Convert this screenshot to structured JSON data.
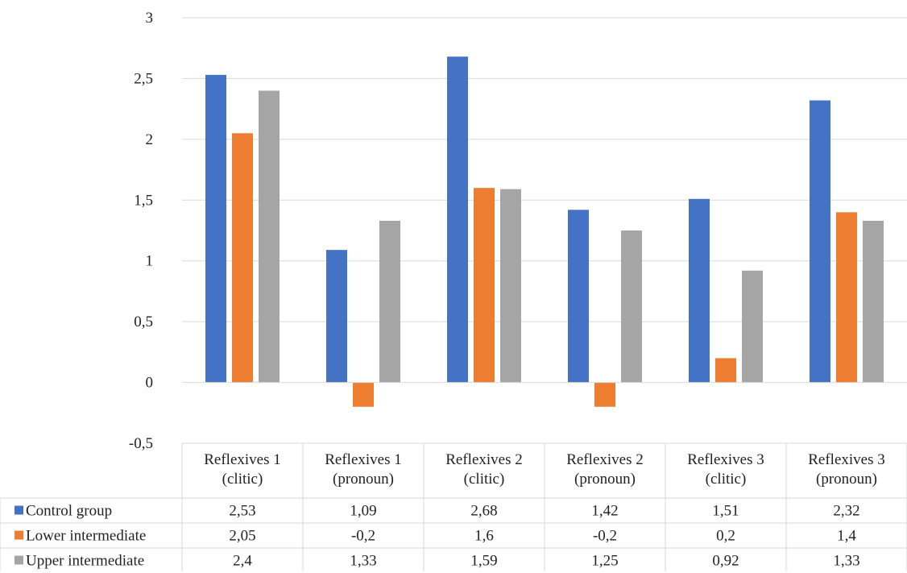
{
  "chart_data": {
    "type": "bar",
    "categories": [
      [
        "Reflexives 1",
        "(clitic)"
      ],
      [
        "Reflexives 1",
        "(pronoun)"
      ],
      [
        "Reflexives 2",
        "(clitic)"
      ],
      [
        "Reflexives 2",
        "(pronoun)"
      ],
      [
        "Reflexives 3",
        "(clitic)"
      ],
      [
        "Reflexives 3",
        "(pronoun)"
      ]
    ],
    "series": [
      {
        "name": "Control group",
        "color": "#4472c4",
        "values": [
          2.53,
          1.09,
          2.68,
          1.42,
          1.51,
          2.32
        ],
        "labels": [
          "2,53",
          "1,09",
          "2,68",
          "1,42",
          "1,51",
          "2,32"
        ]
      },
      {
        "name": "Lower intermediate",
        "color": "#ed7d31",
        "values": [
          2.05,
          -0.2,
          1.6,
          -0.2,
          0.2,
          1.4
        ],
        "labels": [
          "2,05",
          "-0,2",
          "1,6",
          "-0,2",
          "0,2",
          "1,4"
        ]
      },
      {
        "name": "Upper intermediate",
        "color": "#a5a5a5",
        "values": [
          2.4,
          1.33,
          1.59,
          1.25,
          0.92,
          1.33
        ],
        "labels": [
          "2,4",
          "1,33",
          "1,59",
          "1,25",
          "0,92",
          "1,33"
        ]
      }
    ],
    "yticks": [
      {
        "value": 3,
        "label": "3"
      },
      {
        "value": 2.5,
        "label": "2,5"
      },
      {
        "value": 2,
        "label": "2"
      },
      {
        "value": 1.5,
        "label": "1,5"
      },
      {
        "value": 1,
        "label": "1"
      },
      {
        "value": 0.5,
        "label": "0,5"
      },
      {
        "value": 0,
        "label": "0"
      },
      {
        "value": -0.5,
        "label": "-0,5"
      }
    ],
    "ylim": [
      -0.5,
      3
    ],
    "grid": true,
    "data_table": true,
    "legend": "data-table-rows"
  }
}
